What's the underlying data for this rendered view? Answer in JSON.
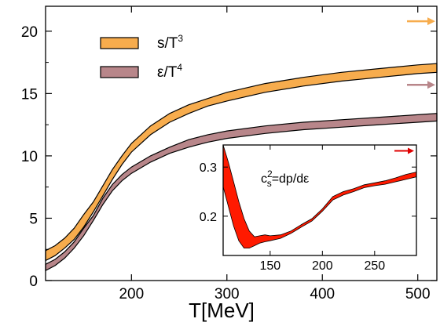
{
  "chart_data": [
    {
      "type": "area",
      "title": "",
      "xlabel": "T[MeV]",
      "ylabel": "",
      "xlim": [
        110,
        520
      ],
      "ylim": [
        0,
        22
      ],
      "xticks": [
        200,
        300,
        400,
        500
      ],
      "yticks": [
        0,
        5,
        10,
        15,
        20
      ],
      "grid": false,
      "legend_position": "top-left",
      "series": [
        {
          "name": "s/T",
          "name_sup": "3",
          "color": "#f7ac4d",
          "x": [
            110,
            120,
            130,
            140,
            150,
            160,
            170,
            180,
            190,
            200,
            220,
            240,
            260,
            280,
            300,
            340,
            380,
            420,
            460,
            500,
            520
          ],
          "lower": [
            1.6,
            2.0,
            2.6,
            3.3,
            4.3,
            5.5,
            6.8,
            8.1,
            9.3,
            10.3,
            11.7,
            12.7,
            13.4,
            14.0,
            14.4,
            15.1,
            15.6,
            16.0,
            16.3,
            16.6,
            16.7
          ],
          "upper": [
            2.4,
            2.8,
            3.4,
            4.2,
            5.3,
            6.3,
            7.6,
            8.9,
            10.0,
            11.0,
            12.4,
            13.4,
            14.1,
            14.6,
            15.1,
            15.8,
            16.3,
            16.7,
            17.0,
            17.3,
            17.4
          ],
          "limit": 20.8
        },
        {
          "name": "ε/T",
          "name_sup": "4",
          "color": "#b8868a",
          "x": [
            110,
            120,
            130,
            140,
            150,
            160,
            170,
            180,
            190,
            200,
            220,
            240,
            260,
            280,
            300,
            340,
            380,
            420,
            460,
            500,
            520
          ],
          "lower": [
            0.8,
            1.2,
            1.8,
            2.6,
            3.6,
            4.8,
            6.1,
            7.2,
            8.0,
            8.6,
            9.5,
            10.2,
            10.7,
            11.1,
            11.4,
            11.8,
            12.1,
            12.3,
            12.5,
            12.7,
            12.8
          ],
          "upper": [
            1.3,
            1.7,
            2.3,
            3.1,
            4.2,
            5.2,
            6.6,
            7.7,
            8.5,
            9.1,
            10.0,
            10.7,
            11.3,
            11.7,
            12.0,
            12.4,
            12.7,
            12.9,
            13.1,
            13.3,
            13.4
          ],
          "limit": 15.7
        }
      ]
    },
    {
      "type": "area",
      "title": "",
      "xlabel": "",
      "ylabel": "",
      "xlim": [
        105,
        290
      ],
      "ylim": [
        0.12,
        0.345
      ],
      "xticks": [
        150,
        200,
        250
      ],
      "yticks": [
        0.2,
        0.3
      ],
      "legend_position": "top-center",
      "series": [
        {
          "name": "c",
          "name_sup": "2",
          "name_sub": "s",
          "name_rest": "=dp/dε",
          "color": "#ff1a00",
          "x": [
            105,
            110,
            115,
            120,
            125,
            130,
            135,
            140,
            145,
            150,
            160,
            170,
            180,
            190,
            200,
            210,
            220,
            230,
            240,
            250,
            260,
            270,
            280,
            290
          ],
          "lower": [
            0.26,
            0.22,
            0.18,
            0.15,
            0.135,
            0.135,
            0.14,
            0.145,
            0.148,
            0.15,
            0.155,
            0.165,
            0.178,
            0.19,
            0.21,
            0.233,
            0.243,
            0.25,
            0.258,
            0.262,
            0.265,
            0.27,
            0.275,
            0.28
          ],
          "upper": [
            0.345,
            0.31,
            0.27,
            0.23,
            0.195,
            0.17,
            0.158,
            0.16,
            0.162,
            0.16,
            0.162,
            0.17,
            0.183,
            0.195,
            0.215,
            0.24,
            0.25,
            0.256,
            0.264,
            0.268,
            0.272,
            0.278,
            0.285,
            0.29
          ],
          "limit": 0.333
        }
      ]
    }
  ]
}
